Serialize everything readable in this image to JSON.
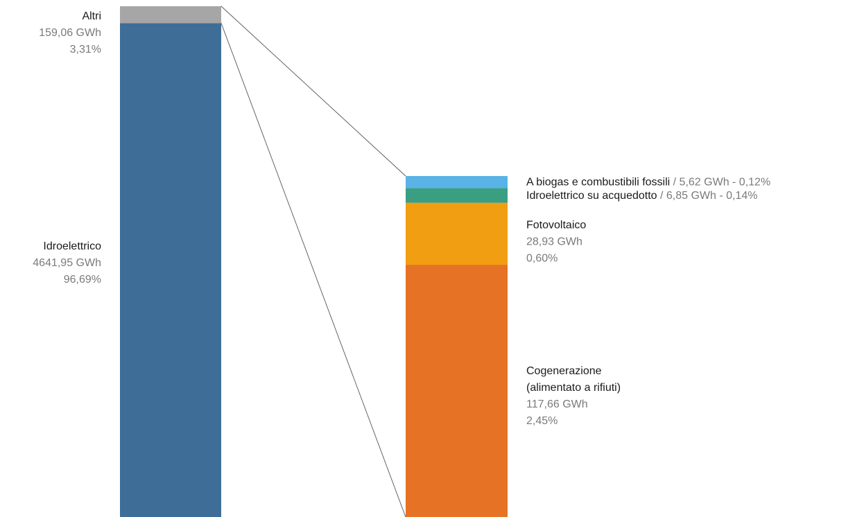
{
  "chart_data": {
    "type": "bar",
    "subtype": "bar-of-bar",
    "main_bar": {
      "segments": [
        {
          "name": "Idroelettrico",
          "value_label": "4641,95 GWh",
          "pct_label": "96,69%",
          "value": 4641.95,
          "pct": 96.69,
          "color": "#3e6e98"
        },
        {
          "name": "Altri",
          "value_label": "159,06 GWh",
          "pct_label": "3,31%",
          "value": 159.06,
          "pct": 3.31,
          "color": "#a6a6a6"
        }
      ]
    },
    "detail_bar": {
      "segments": [
        {
          "name": "Cogenerazione",
          "name_line2": "(alimentato a rifiuti)",
          "value_label": "117,66 GWh",
          "pct_label": "2,45%",
          "value": 117.66,
          "pct": 2.45,
          "color": "#e57225"
        },
        {
          "name": "Fotovoltaico",
          "value_label": "28,93 GWh",
          "pct_label": "0,60%",
          "value": 28.93,
          "pct": 0.6,
          "color": "#f19e12"
        },
        {
          "name": "Idroelettrico su acquedotto",
          "inline_rest": " / 6,85 GWh - 0,14%",
          "value": 6.85,
          "pct": 0.14,
          "color": "#3a9e83"
        },
        {
          "name": "A biogas e combustibili fossili",
          "inline_rest": " / 5,62 GWh - 0,12%",
          "value": 5.62,
          "pct": 0.12,
          "color": "#59b3e6"
        }
      ]
    },
    "connector_color": "#555555"
  }
}
